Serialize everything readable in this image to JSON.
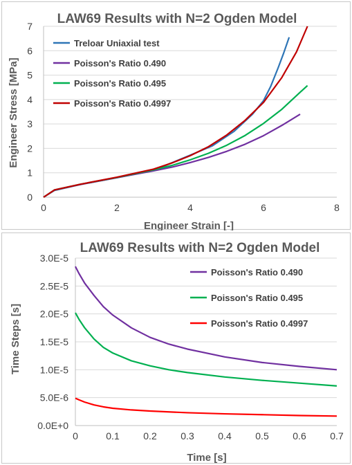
{
  "chart_data": [
    {
      "type": "line",
      "title": "LAW69 Results with N=2 Ogden Model",
      "xlabel": "Engineer Strain [-]",
      "ylabel": "Engineer Stress [MPa]",
      "xlim": [
        0,
        8
      ],
      "ylim": [
        0,
        7
      ],
      "xticks": [
        0,
        2,
        4,
        6,
        8
      ],
      "yticks": [
        0,
        1,
        2,
        3,
        4,
        5,
        6,
        7
      ],
      "xtick_labels": [
        "0",
        "2",
        "4",
        "6",
        "8"
      ],
      "ytick_labels": [
        "0",
        "1",
        "2",
        "3",
        "4",
        "5",
        "6",
        "7"
      ],
      "grid": "horizontal",
      "legend": "top-left",
      "series": [
        {
          "name": "Treloar Uniaxial test",
          "color": "#2E75B6",
          "x": [
            0,
            0.3,
            1.0,
            2.0,
            3.0,
            4.0,
            4.6,
            5.2,
            5.7,
            6.0,
            6.2,
            6.4,
            6.55,
            6.7
          ],
          "y": [
            0,
            0.28,
            0.52,
            0.8,
            1.1,
            1.72,
            2.1,
            2.7,
            3.4,
            3.95,
            4.55,
            5.3,
            5.9,
            6.55
          ]
        },
        {
          "name": "Poisson's Ratio 0.490",
          "color": "#7030A0",
          "x": [
            0,
            0.3,
            1.0,
            2.0,
            3.0,
            3.5,
            4.0,
            4.5,
            5.0,
            5.5,
            6.0,
            6.5,
            7.0
          ],
          "y": [
            0,
            0.3,
            0.52,
            0.8,
            1.08,
            1.23,
            1.42,
            1.63,
            1.88,
            2.17,
            2.52,
            2.94,
            3.4
          ]
        },
        {
          "name": "Poisson's Ratio 0.495",
          "color": "#00B050",
          "x": [
            0,
            0.3,
            1.0,
            2.0,
            3.0,
            3.5,
            4.0,
            4.5,
            5.0,
            5.5,
            6.0,
            6.5,
            7.0,
            7.2
          ],
          "y": [
            0,
            0.3,
            0.53,
            0.81,
            1.12,
            1.3,
            1.53,
            1.8,
            2.13,
            2.53,
            3.02,
            3.6,
            4.3,
            4.57
          ]
        },
        {
          "name": "Poisson's Ratio 0.4997",
          "color": "#C00000",
          "x": [
            0,
            0.3,
            1.0,
            2.0,
            3.0,
            3.5,
            4.0,
            4.5,
            5.0,
            5.5,
            6.0,
            6.5,
            6.9,
            7.2
          ],
          "y": [
            0,
            0.3,
            0.53,
            0.82,
            1.15,
            1.4,
            1.7,
            2.07,
            2.55,
            3.15,
            3.88,
            4.9,
            5.95,
            7.0
          ]
        }
      ]
    },
    {
      "type": "line",
      "title": "LAW69 Results with N=2 Ogden Model",
      "xlabel": "Time [s]",
      "ylabel": "Time Steps [s]",
      "xlim": [
        0,
        0.7
      ],
      "ylim": [
        0,
        3e-05
      ],
      "xticks": [
        0,
        0.1,
        0.2,
        0.3,
        0.4,
        0.5,
        0.6,
        0.7
      ],
      "yticks": [
        0,
        5e-06,
        1e-05,
        1.5e-05,
        2e-05,
        2.5e-05,
        3e-05
      ],
      "xtick_labels": [
        "0",
        "0.1",
        "0.2",
        "0.3",
        "0.4",
        "0.5",
        "0.6",
        "0.7"
      ],
      "ytick_labels": [
        "0.0E+0",
        "5.0E-6",
        "1.0E-5",
        "1.5E-5",
        "2.0E-5",
        "2.5E-5",
        "3.0E-5"
      ],
      "grid": "horizontal",
      "legend": "top-right",
      "series": [
        {
          "name": "Poisson's Ratio 0.490",
          "color": "#7030A0",
          "x": [
            0,
            0.01,
            0.025,
            0.05,
            0.075,
            0.1,
            0.15,
            0.2,
            0.25,
            0.3,
            0.4,
            0.5,
            0.6,
            0.7
          ],
          "y": [
            2.85e-05,
            2.72e-05,
            2.55e-05,
            2.33e-05,
            2.13e-05,
            1.98e-05,
            1.75e-05,
            1.58e-05,
            1.46e-05,
            1.37e-05,
            1.23e-05,
            1.13e-05,
            1.06e-05,
            1e-05
          ]
        },
        {
          "name": "Poisson's Ratio 0.495",
          "color": "#00B050",
          "x": [
            0,
            0.01,
            0.025,
            0.05,
            0.075,
            0.1,
            0.15,
            0.2,
            0.25,
            0.3,
            0.4,
            0.5,
            0.6,
            0.7
          ],
          "y": [
            2.02e-05,
            1.9e-05,
            1.75e-05,
            1.55e-05,
            1.4e-05,
            1.3e-05,
            1.16e-05,
            1.07e-05,
            1e-05,
            9.5e-06,
            8.7e-06,
            8.1e-06,
            7.6e-06,
            7.1e-06
          ]
        },
        {
          "name": "Poisson's Ratio 0.4997",
          "color": "#FF0000",
          "x": [
            0,
            0.01,
            0.025,
            0.05,
            0.075,
            0.1,
            0.15,
            0.2,
            0.25,
            0.3,
            0.4,
            0.5,
            0.6,
            0.7
          ],
          "y": [
            4.9e-06,
            4.6e-06,
            4.2e-06,
            3.7e-06,
            3.35e-06,
            3.1e-06,
            2.8e-06,
            2.6e-06,
            2.45e-06,
            2.3e-06,
            2.1e-06,
            1.95e-06,
            1.8e-06,
            1.7e-06
          ]
        }
      ]
    }
  ]
}
